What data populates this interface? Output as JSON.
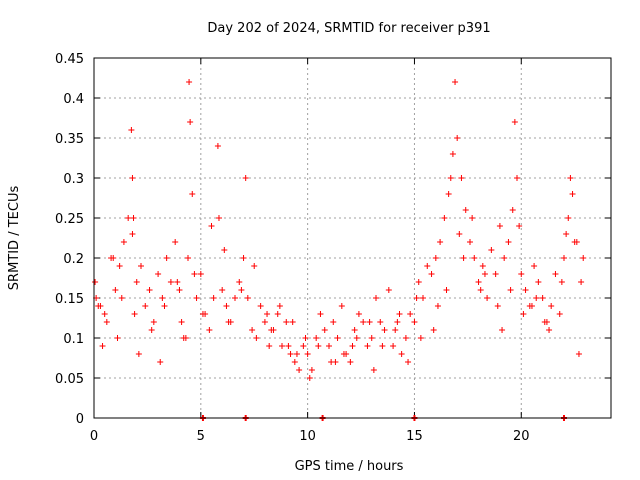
{
  "chart_data": {
    "type": "scatter",
    "title": "Day 202 of 2024, SRMTID for receiver p391",
    "xlabel": "GPS time / hours",
    "ylabel": "SRMTID / TECUs",
    "xlim": [
      0,
      24.2
    ],
    "ylim": [
      0,
      0.45
    ],
    "xticks": [
      0,
      5,
      10,
      15,
      20
    ],
    "xtick_labels": [
      "0",
      "5",
      "10",
      "15",
      "20"
    ],
    "yticks": [
      0,
      0.05,
      0.1,
      0.15,
      0.2,
      0.25,
      0.3,
      0.35,
      0.4,
      0.45
    ],
    "ytick_labels": [
      "0",
      "0.05",
      "0.1",
      "0.15",
      "0.2",
      "0.25",
      "0.3",
      "0.35",
      "0.4",
      "0.45"
    ],
    "grid": true,
    "marker": "+",
    "color": "#ff0000",
    "series": [
      {
        "name": "SRMTID",
        "x": [
          0.05,
          0.2,
          0.4,
          0.6,
          0.8,
          1.0,
          1.2,
          1.4,
          1.6,
          1.8,
          1.75,
          1.8,
          1.85,
          2.0,
          2.2,
          2.4,
          2.6,
          2.8,
          3.0,
          3.2,
          3.4,
          3.6,
          3.8,
          4.0,
          4.2,
          4.4,
          4.45,
          4.5,
          4.6,
          4.8,
          5.0,
          5.2,
          5.4,
          5.6,
          5.8,
          5.85,
          6.0,
          6.2,
          6.4,
          6.6,
          6.8,
          7.0,
          7.2,
          7.4,
          7.6,
          7.8,
          8.0,
          8.2,
          8.4,
          8.6,
          8.8,
          9.0,
          9.2,
          9.4,
          9.6,
          9.8,
          10.0,
          10.2,
          10.4,
          10.6,
          10.8,
          11.0,
          11.2,
          11.4,
          11.6,
          11.8,
          12.0,
          12.2,
          12.4,
          12.6,
          12.8,
          13.0,
          13.2,
          13.4,
          13.6,
          13.8,
          14.0,
          14.2,
          14.4,
          14.6,
          14.8,
          15.0,
          15.2,
          15.4,
          15.6,
          15.8,
          16.0,
          16.2,
          16.4,
          16.6,
          16.8,
          16.9,
          17.0,
          17.2,
          17.4,
          17.6,
          17.8,
          18.0,
          18.2,
          18.4,
          18.6,
          18.8,
          19.0,
          19.2,
          19.4,
          19.6,
          19.7,
          19.8,
          20.0,
          20.2,
          20.4,
          20.6,
          20.8,
          21.0,
          21.2,
          21.4,
          21.6,
          21.8,
          22.0,
          22.2,
          22.3,
          22.4,
          22.6,
          22.8,
          0.1,
          0.5,
          0.9,
          1.3,
          2.1,
          2.7,
          3.3,
          3.9,
          4.3,
          5.1,
          5.5,
          6.3,
          6.9,
          7.5,
          8.1,
          8.7,
          9.3,
          9.9,
          10.5,
          11.1,
          11.7,
          12.3,
          12.9,
          13.5,
          14.1,
          14.7,
          15.3,
          15.9,
          16.5,
          17.1,
          17.7,
          18.3,
          18.9,
          19.5,
          20.1,
          20.7,
          21.3,
          21.9,
          22.5,
          22.9,
          0.3,
          1.1,
          1.9,
          3.1,
          4.1,
          4.7,
          6.1,
          7.1,
          8.3,
          9.1,
          9.5,
          10.1,
          11.3,
          12.1,
          13.1,
          14.3,
          15.1,
          16.1,
          16.7,
          17.3,
          18.1,
          19.1,
          19.9,
          20.5,
          21.1,
          22.1,
          22.7
        ],
        "y": [
          0.17,
          0.14,
          0.09,
          0.12,
          0.2,
          0.16,
          0.19,
          0.22,
          0.25,
          0.23,
          0.36,
          0.3,
          0.25,
          0.17,
          0.19,
          0.14,
          0.16,
          0.12,
          0.18,
          0.15,
          0.2,
          0.17,
          0.22,
          0.16,
          0.1,
          0.2,
          0.42,
          0.37,
          0.28,
          0.15,
          0.18,
          0.13,
          0.11,
          0.15,
          0.34,
          0.25,
          0.16,
          0.14,
          0.12,
          0.15,
          0.17,
          0.2,
          0.15,
          0.11,
          0.1,
          0.14,
          0.12,
          0.09,
          0.11,
          0.13,
          0.09,
          0.12,
          0.08,
          0.07,
          0.06,
          0.09,
          0.08,
          0.06,
          0.1,
          0.13,
          0.11,
          0.09,
          0.12,
          0.1,
          0.14,
          0.08,
          0.07,
          0.11,
          0.13,
          0.12,
          0.09,
          0.1,
          0.15,
          0.12,
          0.11,
          0.16,
          0.09,
          0.12,
          0.08,
          0.1,
          0.13,
          0.12,
          0.17,
          0.15,
          0.19,
          0.18,
          0.2,
          0.22,
          0.25,
          0.28,
          0.33,
          0.42,
          0.35,
          0.3,
          0.26,
          0.22,
          0.2,
          0.17,
          0.19,
          0.15,
          0.21,
          0.18,
          0.24,
          0.2,
          0.22,
          0.26,
          0.37,
          0.3,
          0.18,
          0.16,
          0.14,
          0.19,
          0.17,
          0.15,
          0.12,
          0.14,
          0.18,
          0.13,
          0.2,
          0.25,
          0.3,
          0.28,
          0.22,
          0.17,
          0.15,
          0.13,
          0.2,
          0.15,
          0.08,
          0.11,
          0.14,
          0.17,
          0.1,
          0.13,
          0.24,
          0.12,
          0.16,
          0.19,
          0.13,
          0.14,
          0.12,
          0.1,
          0.09,
          0.07,
          0.08,
          0.1,
          0.12,
          0.09,
          0.11,
          0.07,
          0.1,
          0.11,
          0.16,
          0.23,
          0.25,
          0.18,
          0.14,
          0.16,
          0.13,
          0.15,
          0.11,
          0.17,
          0.22,
          0.2,
          0.14,
          0.1,
          0.13,
          0.07,
          0.12,
          0.18,
          0.21,
          0.3,
          0.11,
          0.09,
          0.08,
          0.05,
          0.07,
          0.09,
          0.06,
          0.13,
          0.15,
          0.14,
          0.3,
          0.2,
          0.16,
          0.11,
          0.24,
          0.14,
          0.12,
          0.23,
          0.08
        ]
      }
    ],
    "zero_markers_x": [
      5.1,
      7.1,
      10.7,
      15.0,
      22.0
    ]
  }
}
